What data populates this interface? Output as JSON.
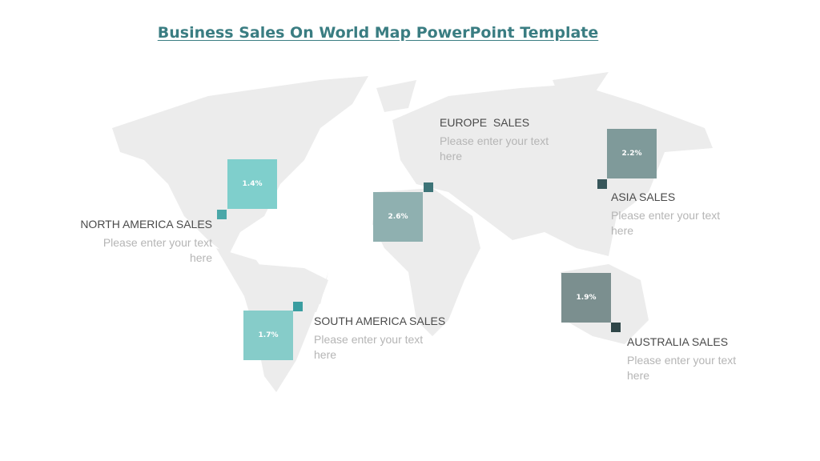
{
  "title": "Business Sales On World Map PowerPoint Template",
  "regions": [
    {
      "name": "NORTH AMERICA SALES",
      "value": "1.4%",
      "text": "Please enter your text here"
    },
    {
      "name": "SOUTH AMERICA SALES",
      "value": "1.7%",
      "text": "Please enter your text here"
    },
    {
      "name": "EUROPE  SALES",
      "value": "2.6%",
      "text": "Please enter your text here"
    },
    {
      "name": "ASIA SALES",
      "value": "2.2%",
      "text": "Please enter your text here"
    },
    {
      "name": "AUSTRALIA SALES",
      "value": "1.9%",
      "text": "Please enter your text here"
    }
  ]
}
